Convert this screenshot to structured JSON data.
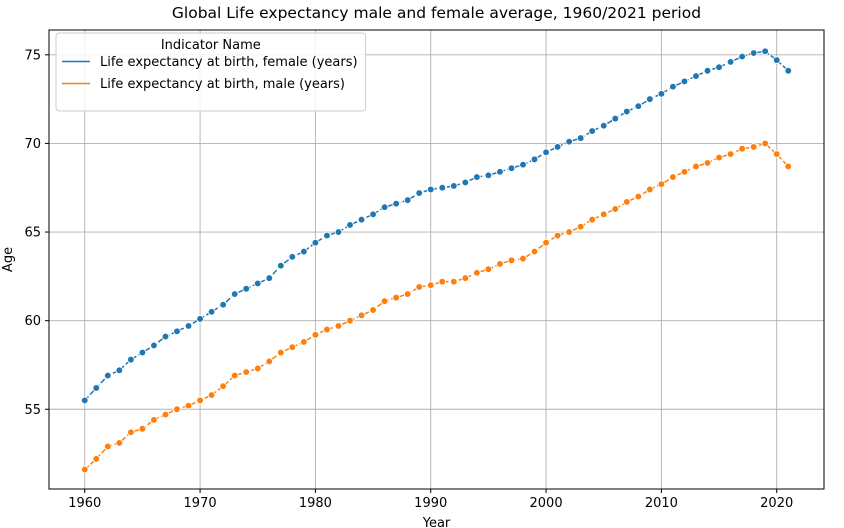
{
  "chart_data": {
    "type": "line",
    "title": "Global Life expectancy male and female average, 1960/2021 period",
    "xlabel": "Year",
    "ylabel": "Age",
    "xlim": [
      1956.9,
      2024.1
    ],
    "ylim": [
      50.5,
      76.4
    ],
    "xticks": [
      1960,
      1970,
      1980,
      1990,
      2000,
      2010,
      2020
    ],
    "yticks": [
      55,
      60,
      65,
      70,
      75
    ],
    "grid": true,
    "legend": {
      "title": "Indicator Name",
      "placement": "top-left"
    },
    "x": [
      1960,
      1961,
      1962,
      1963,
      1964,
      1965,
      1966,
      1967,
      1968,
      1969,
      1970,
      1971,
      1972,
      1973,
      1974,
      1975,
      1976,
      1977,
      1978,
      1979,
      1980,
      1981,
      1982,
      1983,
      1984,
      1985,
      1986,
      1987,
      1988,
      1989,
      1990,
      1991,
      1992,
      1993,
      1994,
      1995,
      1996,
      1997,
      1998,
      1999,
      2000,
      2001,
      2002,
      2003,
      2004,
      2005,
      2006,
      2007,
      2008,
      2009,
      2010,
      2011,
      2012,
      2013,
      2014,
      2015,
      2016,
      2017,
      2018,
      2019,
      2020,
      2021
    ],
    "series": [
      {
        "name": "Life expectancy at birth, female (years)",
        "color": "#1f77b4",
        "values": [
          55.5,
          56.2,
          56.9,
          57.2,
          57.8,
          58.2,
          58.6,
          59.1,
          59.4,
          59.7,
          60.1,
          60.5,
          60.9,
          61.5,
          61.8,
          62.1,
          62.4,
          63.1,
          63.6,
          63.9,
          64.4,
          64.8,
          65.0,
          65.4,
          65.7,
          66.0,
          66.4,
          66.6,
          66.8,
          67.2,
          67.4,
          67.5,
          67.6,
          67.8,
          68.1,
          68.2,
          68.4,
          68.6,
          68.8,
          69.1,
          69.5,
          69.8,
          70.1,
          70.3,
          70.7,
          71.0,
          71.4,
          71.8,
          72.1,
          72.5,
          72.8,
          73.2,
          73.5,
          73.8,
          74.1,
          74.3,
          74.6,
          74.9,
          75.1,
          75.2,
          74.7,
          74.1
        ]
      },
      {
        "name": "Life expectancy at birth, male (years)",
        "color": "#ff7f0e",
        "values": [
          51.6,
          52.2,
          52.9,
          53.1,
          53.7,
          53.9,
          54.4,
          54.7,
          55.0,
          55.2,
          55.5,
          55.8,
          56.3,
          56.9,
          57.1,
          57.3,
          57.7,
          58.2,
          58.5,
          58.8,
          59.2,
          59.5,
          59.7,
          60.0,
          60.3,
          60.6,
          61.1,
          61.3,
          61.5,
          61.9,
          62.0,
          62.2,
          62.2,
          62.4,
          62.7,
          62.9,
          63.2,
          63.4,
          63.5,
          63.9,
          64.4,
          64.8,
          65.0,
          65.3,
          65.7,
          66.0,
          66.3,
          66.7,
          67.0,
          67.4,
          67.7,
          68.1,
          68.4,
          68.7,
          68.9,
          69.2,
          69.4,
          69.7,
          69.8,
          70.0,
          69.4,
          68.7
        ]
      }
    ]
  }
}
